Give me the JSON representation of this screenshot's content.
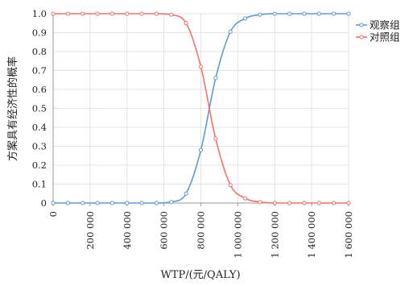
{
  "chart_data": {
    "type": "line",
    "title": "",
    "xlabel": "WTP/(元/QALY)",
    "ylabel": "方案具有经济性的概率",
    "xlim": [
      0,
      1600000
    ],
    "ylim": [
      0,
      1.0
    ],
    "x_ticks": [
      "0",
      "200 000",
      "400 000",
      "600 000",
      "800 000",
      "1 000 000",
      "1 200 000",
      "1 400 000",
      "1 600 000"
    ],
    "y_ticks": [
      "0",
      "0.1",
      "0.2",
      "0.3",
      "0.4",
      "0.5",
      "0.6",
      "0.7",
      "0.8",
      "0.9",
      "1.0"
    ],
    "grid": true,
    "legend_position": "right",
    "x": [
      0,
      80000,
      160000,
      240000,
      320000,
      400000,
      480000,
      560000,
      640000,
      720000,
      800000,
      880000,
      960000,
      1040000,
      1120000,
      1200000,
      1280000,
      1360000,
      1440000,
      1520000,
      1600000
    ],
    "series": [
      {
        "name": "观察组",
        "color": "#5b9bd5",
        "values": [
          0,
          0,
          0,
          0,
          0,
          0,
          0,
          0,
          0.005,
          0.05,
          0.28,
          0.66,
          0.905,
          0.975,
          0.995,
          1.0,
          1.0,
          1.0,
          1.0,
          1.0,
          1.0
        ]
      },
      {
        "name": "对照组",
        "color": "#f4706b",
        "values": [
          1.0,
          1.0,
          1.0,
          1.0,
          1.0,
          1.0,
          1.0,
          1.0,
          0.995,
          0.95,
          0.72,
          0.34,
          0.095,
          0.025,
          0.005,
          0,
          0,
          0,
          0,
          0,
          0
        ]
      }
    ]
  }
}
